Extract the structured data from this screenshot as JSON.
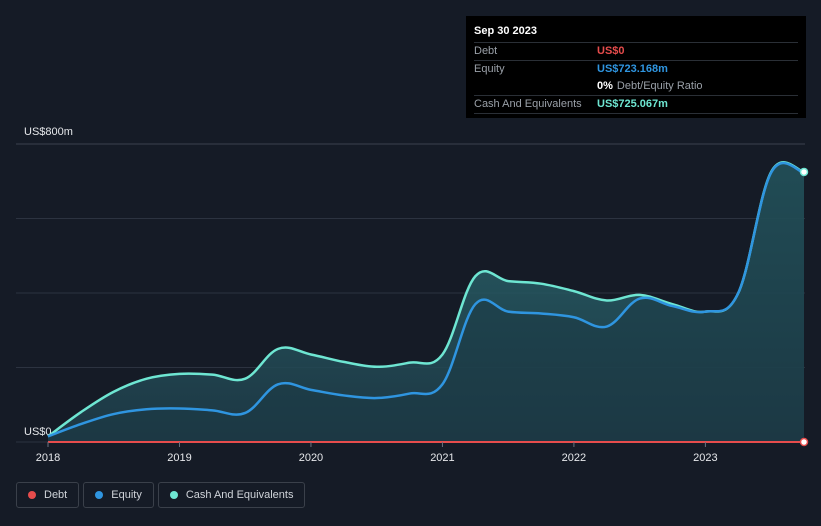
{
  "tooltip": {
    "date": "Sep 30 2023",
    "debt_label": "Debt",
    "debt_value": "US$0",
    "equity_label": "Equity",
    "equity_value": "US$723.168m",
    "ratio_value": "0%",
    "ratio_label": "Debt/Equity Ratio",
    "cash_label": "Cash And Equivalents",
    "cash_value": "US$725.067m"
  },
  "legend": {
    "debt": "Debt",
    "equity": "Equity",
    "cash": "Cash And Equivalents"
  },
  "colors": {
    "background": "#151b26",
    "debt": "#e64c4c",
    "equity": "#2f95e0",
    "cash": "#6ee6d2",
    "grid": "#2c3340"
  },
  "chart_data": {
    "type": "area",
    "title": "",
    "xlabel": "",
    "ylabel": "",
    "y_axis_labels": [
      "US$800m",
      "US$0"
    ],
    "ylim": [
      0,
      800
    ],
    "xlim": [
      2018.0,
      2023.75
    ],
    "x_ticks": [
      2018,
      2019,
      2020,
      2021,
      2022,
      2023
    ],
    "x_tick_labels": [
      "2018",
      "2019",
      "2020",
      "2021",
      "2022",
      "2023"
    ],
    "series": [
      {
        "name": "Cash And Equivalents",
        "x": [
          2018.0,
          2018.25,
          2018.5,
          2018.75,
          2019.0,
          2019.25,
          2019.5,
          2019.75,
          2020.0,
          2020.25,
          2020.5,
          2020.75,
          2021.0,
          2021.25,
          2021.5,
          2021.75,
          2022.0,
          2022.25,
          2022.5,
          2022.75,
          2023.0,
          2023.25,
          2023.5,
          2023.75
        ],
        "values": [
          15,
          80,
          135,
          170,
          183,
          181,
          170,
          250,
          235,
          215,
          202,
          213,
          235,
          445,
          432,
          425,
          405,
          380,
          395,
          370,
          350,
          400,
          725,
          725
        ]
      },
      {
        "name": "Equity",
        "x": [
          2018.0,
          2018.25,
          2018.5,
          2018.75,
          2019.0,
          2019.25,
          2019.5,
          2019.75,
          2020.0,
          2020.25,
          2020.5,
          2020.75,
          2021.0,
          2021.25,
          2021.5,
          2021.75,
          2022.0,
          2022.25,
          2022.5,
          2022.75,
          2023.0,
          2023.25,
          2023.5,
          2023.75
        ],
        "values": [
          15,
          48,
          75,
          88,
          90,
          85,
          78,
          155,
          140,
          125,
          118,
          130,
          155,
          370,
          350,
          345,
          335,
          310,
          385,
          365,
          350,
          400,
          723,
          723
        ]
      },
      {
        "name": "Debt",
        "x": [
          2018.0,
          2023.75
        ],
        "values": [
          0,
          0
        ]
      }
    ]
  }
}
